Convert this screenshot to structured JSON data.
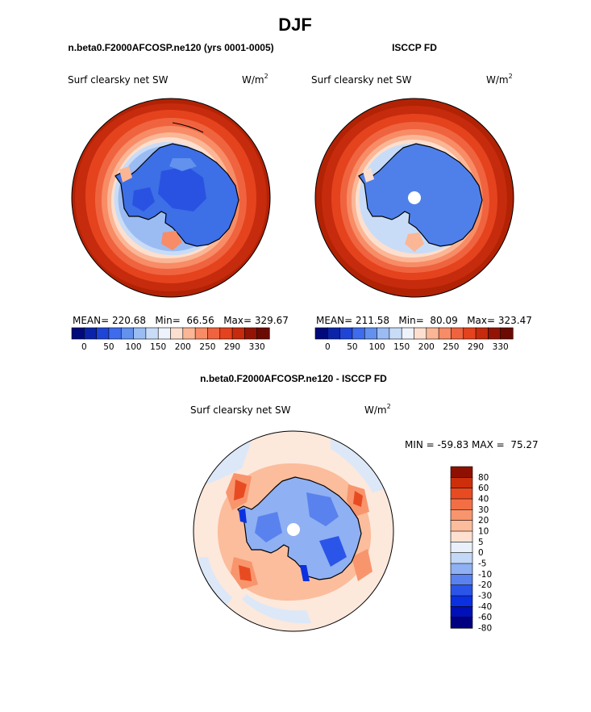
{
  "figure": {
    "title": "DJF",
    "bottom_title": "n.beta0.F2000AFCOSP.ne120 - ISCCP FD"
  },
  "colors": {
    "absolute": [
      "#000a7a",
      "#0a23a8",
      "#1f45d6",
      "#3e6cec",
      "#6291ee",
      "#9bbcf3",
      "#c8dcf7",
      "#eef3fb",
      "#fcdfcf",
      "#fbb696",
      "#f78c66",
      "#f0633f",
      "#e5421e",
      "#c52b0c",
      "#931405",
      "#6b0a02"
    ],
    "difference": [
      "#000080",
      "#0010b8",
      "#0a30e0",
      "#2b55e8",
      "#5a82ee",
      "#8fb0f2",
      "#c3d7f6",
      "#e9f0fa",
      "#fde0d0",
      "#fbbd9c",
      "#f8956d",
      "#f26f45",
      "#e84b22",
      "#cc2f0a",
      "#8e1002"
    ],
    "land": "#3d6fe6",
    "ocean_outer": "#b22205",
    "hole": "#ffffff"
  },
  "chart_data": [
    {
      "type": "heatmap",
      "panel": "model",
      "title": "n.beta0.F2000AFCOSP.ne120 (yrs 0001-0005)",
      "field_label": "Surf clearsky net SW",
      "units_base": "W/m",
      "units_exp": "2",
      "stats_text": "MEAN= 220.68   Min=  66.56   Max= 329.67",
      "mean": 220.68,
      "min": 66.56,
      "max": 329.67,
      "colorbar_levels": [
        0,
        25,
        50,
        75,
        100,
        125,
        150,
        175,
        200,
        225,
        250,
        270,
        290,
        310,
        330
      ],
      "colorbar_tick_labels": [
        "0",
        "50",
        "100",
        "150",
        "200",
        "250",
        "290",
        "330"
      ],
      "projection": "south polar stereographic"
    },
    {
      "type": "heatmap",
      "panel": "observations",
      "title": "ISCCP FD",
      "field_label": "Surf clearsky net SW",
      "units_base": "W/m",
      "units_exp": "2",
      "stats_text": "MEAN= 211.58   Min=  80.09   Max= 323.47",
      "mean": 211.58,
      "min": 80.09,
      "max": 323.47,
      "colorbar_levels": [
        0,
        25,
        50,
        75,
        100,
        125,
        150,
        175,
        200,
        225,
        250,
        270,
        290,
        310,
        330
      ],
      "colorbar_tick_labels": [
        "0",
        "50",
        "100",
        "150",
        "200",
        "250",
        "290",
        "330"
      ],
      "projection": "south polar stereographic"
    },
    {
      "type": "heatmap",
      "panel": "difference",
      "title": "n.beta0.F2000AFCOSP.ne120 - ISCCP FD",
      "field_label": "Surf clearsky net SW",
      "units_base": "W/m",
      "units_exp": "2",
      "stats_text": "MIN = -59.83 MAX =  75.27",
      "min": -59.83,
      "max": 75.27,
      "colorbar_tick_labels": [
        "80",
        "60",
        "40",
        "30",
        "20",
        "10",
        "5",
        "0",
        "-5",
        "-10",
        "-20",
        "-30",
        "-40",
        "-60",
        "-80"
      ],
      "projection": "south polar stereographic"
    }
  ]
}
